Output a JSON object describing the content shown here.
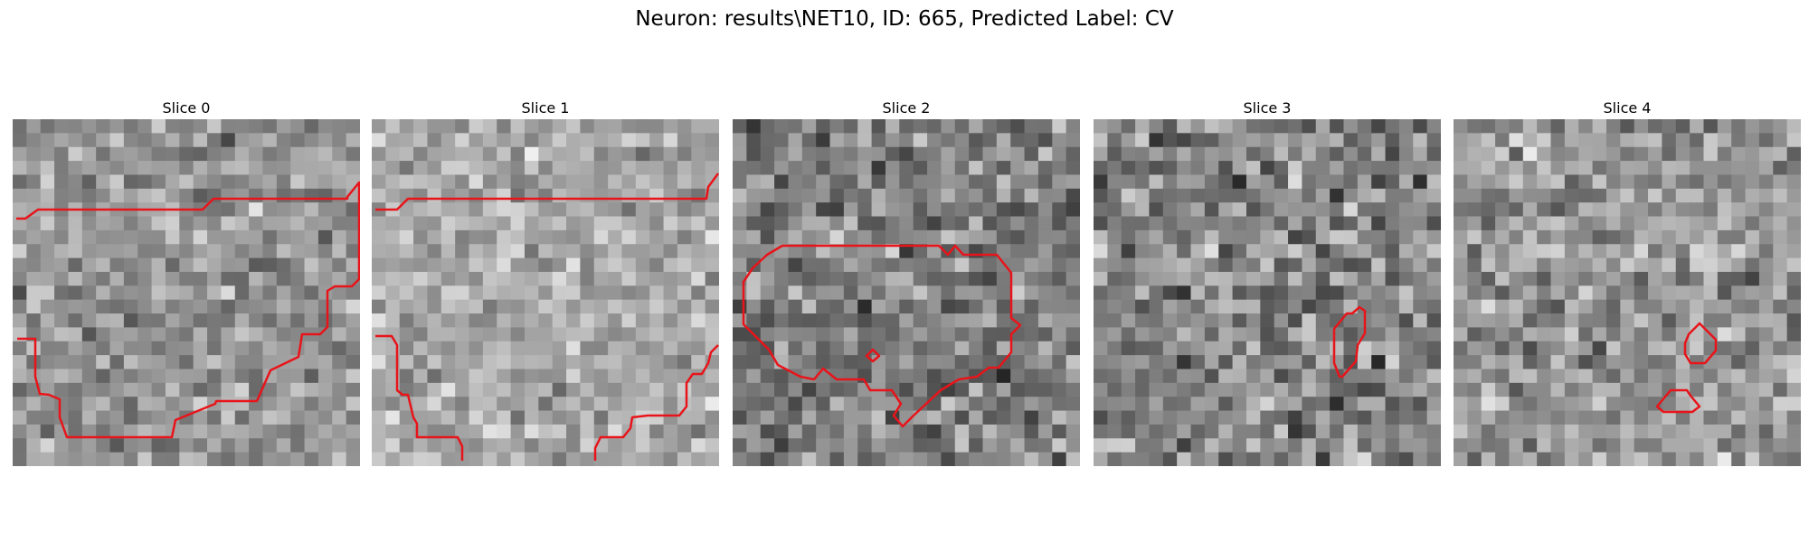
{
  "figure": {
    "title": "Neuron: results\\NET10, ID: 665, Predicted Label: CV"
  },
  "chart_data": {
    "type": "heatmap",
    "colormap": "grayscale",
    "contour_color": "#e8141a",
    "axes_visible": false,
    "panels": [
      {
        "title": "Slice 0",
        "seed": 11,
        "mean": 0.58,
        "spread": 0.22
      },
      {
        "title": "Slice 1",
        "seed": 23,
        "mean": 0.66,
        "spread": 0.2
      },
      {
        "title": "Slice 2",
        "seed": 37,
        "mean": 0.5,
        "spread": 0.26
      },
      {
        "title": "Slice 3",
        "seed": 51,
        "mean": 0.52,
        "spread": 0.28
      },
      {
        "title": "Slice 4",
        "seed": 67,
        "mean": 0.6,
        "spread": 0.24
      }
    ]
  }
}
